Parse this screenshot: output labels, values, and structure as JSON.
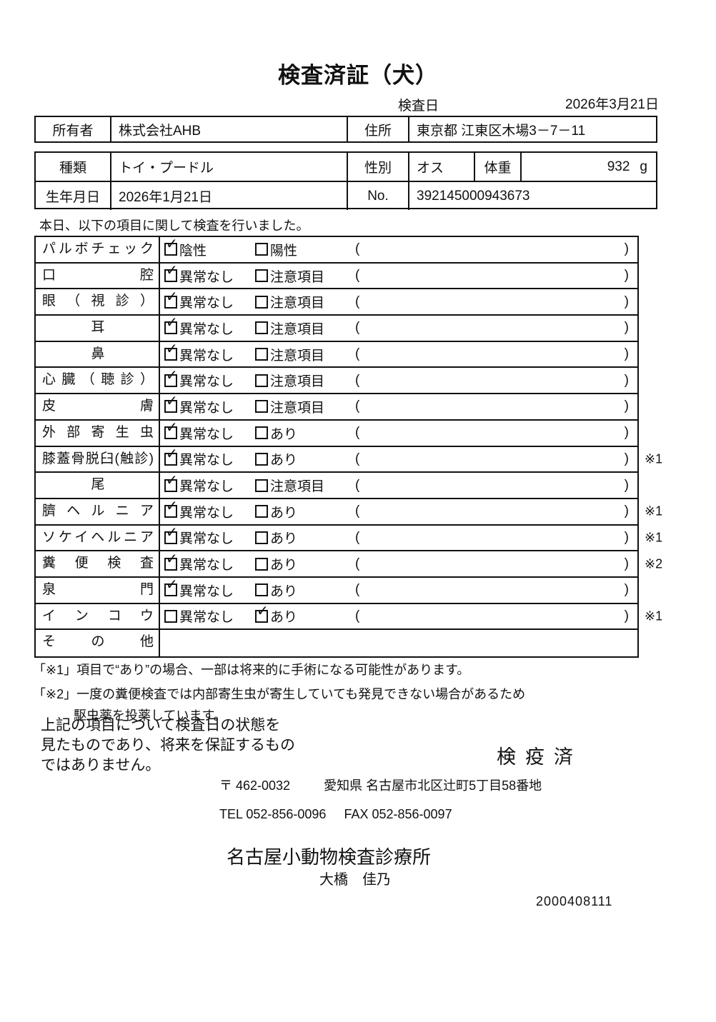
{
  "title": "検査済証（犬）",
  "inspection_date": {
    "label": "検査日",
    "value": "2026年3月21日"
  },
  "owner": {
    "label": "所有者",
    "value": "株式会社AHB",
    "address_label": "住所",
    "address_value": "東京都 江東区木場3－7－11"
  },
  "pet": {
    "breed_label": "種類",
    "breed_value": "トイ・プードル",
    "sex_label": "性別",
    "sex_value": "オス",
    "weight_label": "体重",
    "weight_value": "932",
    "weight_unit": "g",
    "birth_label": "生年月日",
    "birth_value": "2026年1月21日",
    "no_label": "No.",
    "no_value": "392145000943673"
  },
  "intro": "本日、以下の項目に関して検査を行いました。",
  "checklist": {
    "paren_open": "(",
    "paren_close": ")",
    "rows": [
      {
        "label": "パルボチェック",
        "align": "justify",
        "options": [
          {
            "text": "陰性",
            "checked": true
          },
          {
            "text": "陽性",
            "checked": false
          }
        ],
        "note": ""
      },
      {
        "label": "口腔",
        "align": "justify",
        "options": [
          {
            "text": "異常なし",
            "checked": true
          },
          {
            "text": "注意項目",
            "checked": false
          }
        ],
        "note": ""
      },
      {
        "label": "眼（視診）",
        "align": "justify",
        "options": [
          {
            "text": "異常なし",
            "checked": true
          },
          {
            "text": "注意項目",
            "checked": false
          }
        ],
        "note": ""
      },
      {
        "label": "耳",
        "align": "center",
        "options": [
          {
            "text": "異常なし",
            "checked": true
          },
          {
            "text": "注意項目",
            "checked": false
          }
        ],
        "note": ""
      },
      {
        "label": "鼻",
        "align": "center",
        "options": [
          {
            "text": "異常なし",
            "checked": true
          },
          {
            "text": "注意項目",
            "checked": false
          }
        ],
        "note": ""
      },
      {
        "label": "心臓（聴診）",
        "align": "justify",
        "options": [
          {
            "text": "異常なし",
            "checked": true
          },
          {
            "text": "注意項目",
            "checked": false
          }
        ],
        "note": ""
      },
      {
        "label": "皮膚",
        "align": "justify",
        "options": [
          {
            "text": "異常なし",
            "checked": true
          },
          {
            "text": "注意項目",
            "checked": false
          }
        ],
        "note": ""
      },
      {
        "label": "外部寄生虫",
        "align": "justify",
        "options": [
          {
            "text": "異常なし",
            "checked": true
          },
          {
            "text": "あり",
            "checked": false
          }
        ],
        "note": ""
      },
      {
        "label": "膝蓋骨脱臼(触診)",
        "align": "justify",
        "options": [
          {
            "text": "異常なし",
            "checked": true
          },
          {
            "text": "あり",
            "checked": false
          }
        ],
        "note": "※1"
      },
      {
        "label": "尾",
        "align": "center",
        "options": [
          {
            "text": "異常なし",
            "checked": true
          },
          {
            "text": "注意項目",
            "checked": false
          }
        ],
        "note": ""
      },
      {
        "label": "臍ヘルニア",
        "align": "justify",
        "options": [
          {
            "text": "異常なし",
            "checked": true
          },
          {
            "text": "あり",
            "checked": false
          }
        ],
        "note": "※1"
      },
      {
        "label": "ソケイヘルニア",
        "align": "justify",
        "options": [
          {
            "text": "異常なし",
            "checked": true
          },
          {
            "text": "あり",
            "checked": false
          }
        ],
        "note": "※1"
      },
      {
        "label": "糞便検査",
        "align": "justify",
        "options": [
          {
            "text": "異常なし",
            "checked": true
          },
          {
            "text": "あり",
            "checked": false
          }
        ],
        "note": "※2"
      },
      {
        "label": "泉門",
        "align": "justify",
        "options": [
          {
            "text": "異常なし",
            "checked": true
          },
          {
            "text": "あり",
            "checked": false
          }
        ],
        "note": ""
      },
      {
        "label": "インコウ",
        "align": "justify",
        "options": [
          {
            "text": "異常なし",
            "checked": false
          },
          {
            "text": "あり",
            "checked": true
          }
        ],
        "note": "※1"
      },
      {
        "label": "その他",
        "align": "justify",
        "options": [],
        "note": ""
      }
    ]
  },
  "notes": [
    "「※1」項目で“あり”の場合、一部は将来的に手術になる可能性があります。",
    "「※2」一度の糞便検査では内部寄生虫が寄生していても発見できない場合があるため",
    "駆虫薬を投薬しています。"
  ],
  "disclaimer": [
    "上記の項目について検査日の状態を",
    "見たものであり、将来を保証するもの",
    "ではありません。"
  ],
  "quarantine_stamp": "検疫済",
  "clinic": {
    "postal": "〒 462-0032",
    "address": "愛知県 名古屋市北区辻町5丁目58番地",
    "tel": "TEL 052-856-0096",
    "fax": "FAX 052-856-0097",
    "name": "名古屋小動物検査診療所",
    "vet": "大橋　佳乃",
    "serial": "2000408111"
  },
  "icons": {
    "check": "✓"
  }
}
